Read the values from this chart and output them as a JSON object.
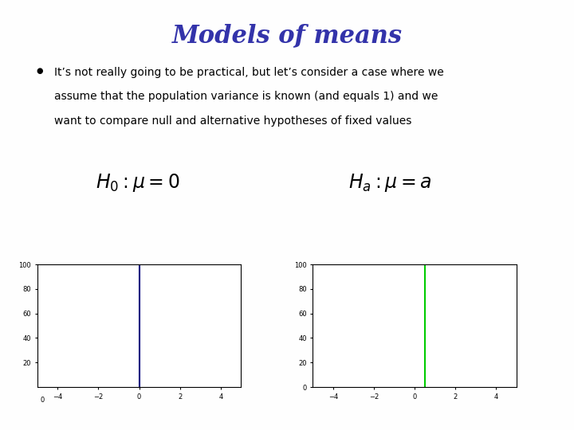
{
  "title": "Models of means",
  "title_color": "#3333AA",
  "title_fontsize": 22,
  "bullet_line1": "It’s not really going to be practical, but let’s consider a case where we",
  "bullet_line2": "assume that the population variance is known (and equals 1) and we",
  "bullet_line3": "want to compare null and alternative hypotheses of fixed values",
  "formula_left": "$H_0 : \\mu = 0$",
  "formula_right": "$H_a : \\mu = a$",
  "bg_color": "#FEFEFE",
  "border_color": "#E8D84A",
  "plot1_spike_x": 0,
  "plot1_spike_color": "#000080",
  "plot2_spike_x": 0.5,
  "plot2_spike_color": "#00CC00",
  "xlim": [
    -5,
    5
  ],
  "ylim": [
    0,
    100
  ],
  "yticks_left": [
    20,
    40,
    60,
    80,
    100
  ],
  "yticks_right": [
    0,
    20,
    40,
    60,
    80,
    100
  ],
  "xticks": [
    -4,
    -2,
    0,
    2,
    4
  ]
}
